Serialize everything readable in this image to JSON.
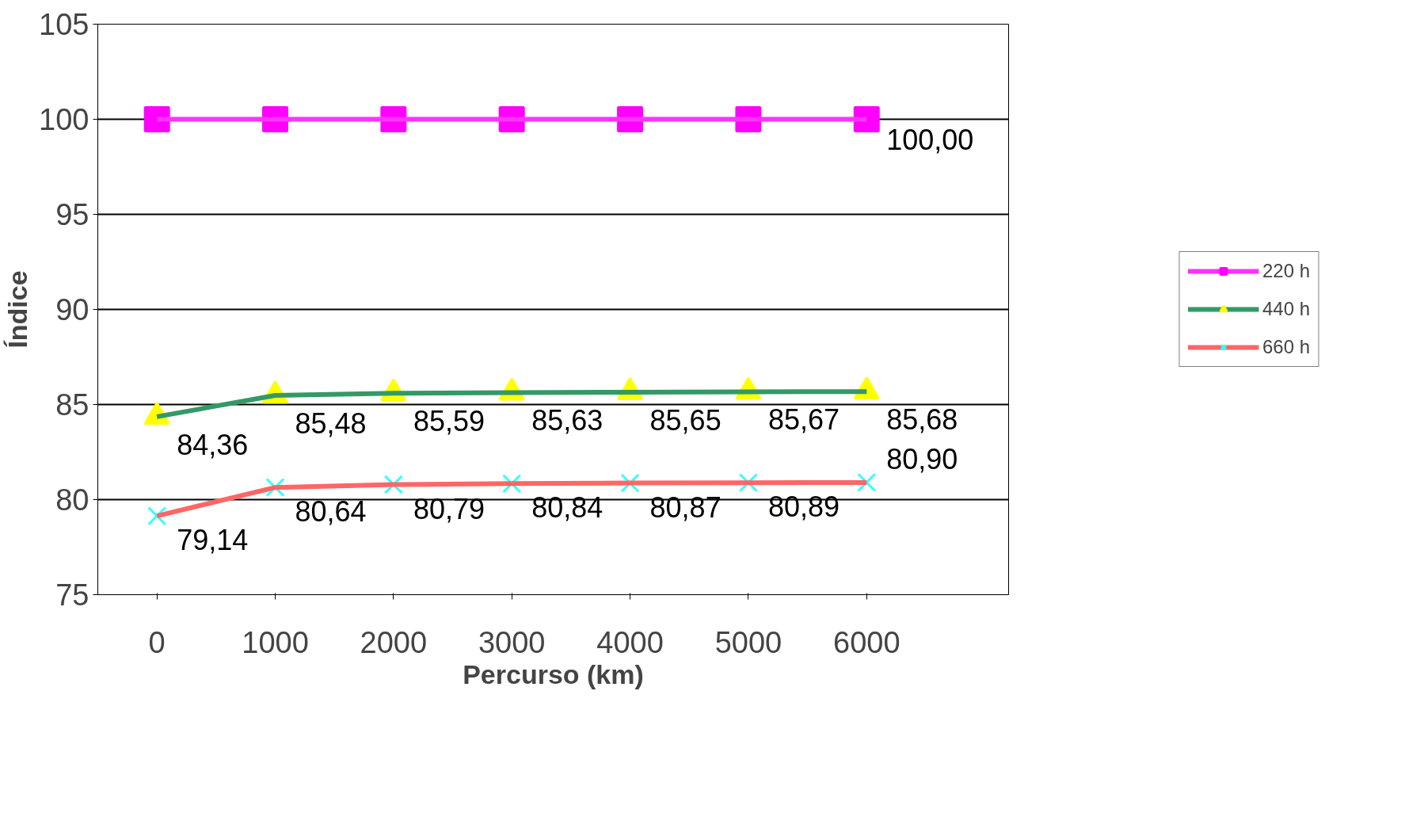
{
  "chart_data": {
    "type": "line",
    "xlabel": "Percurso (km)",
    "ylabel": "Índice",
    "categories": [
      "0",
      "1000",
      "2000",
      "3000",
      "4000",
      "5000",
      "6000"
    ],
    "series": [
      {
        "name": "220 h",
        "color": "#ff33ff",
        "colors": [
          "#ff00ff",
          "#ff00ff",
          "#ff00ff",
          "#ff00ff",
          "#ff00ff",
          "#ff00ff",
          "#ff00ff"
        ],
        "marker": "square",
        "values": [
          100,
          100,
          100,
          100,
          100,
          100,
          100
        ],
        "value_labels": [
          null,
          null,
          null,
          null,
          null,
          null,
          "100,00"
        ]
      },
      {
        "name": "440 h",
        "color": "#339966",
        "colors": [
          "#ffff00",
          "#ffff00",
          "#ffff00",
          "#ffff00",
          "#ffff00",
          "#ffff00",
          "#ffff00"
        ],
        "marker": "triangle",
        "values": [
          84.36,
          85.48,
          85.59,
          85.63,
          85.65,
          85.67,
          85.68
        ],
        "value_labels": [
          "84,36",
          "85,48",
          "85,59",
          "85,63",
          "85,65",
          "85,67",
          "85,68"
        ]
      },
      {
        "name": "660 h",
        "color": "#ff6666",
        "colors": [
          "#33ffff",
          "#33ffff",
          "#33ffff",
          "#33ffff",
          "#33ffff",
          "#33ffff",
          "#33ffff"
        ],
        "marker": "x",
        "values": [
          79.14,
          80.64,
          80.79,
          80.84,
          80.87,
          80.89,
          80.9
        ],
        "value_labels": [
          "79,14",
          "80,64",
          "80,79",
          "80,84",
          "80,87",
          "80,89",
          "80,90"
        ]
      }
    ],
    "ylim": [
      75,
      105
    ],
    "yticks": [
      75,
      80,
      85,
      90,
      95,
      100,
      105
    ],
    "grid": "y",
    "legend": "right"
  }
}
